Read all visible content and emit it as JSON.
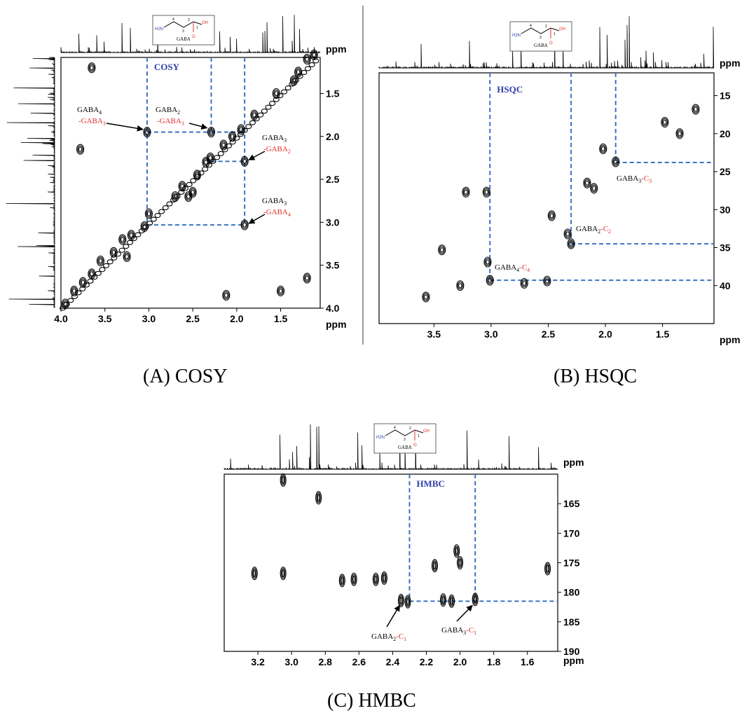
{
  "colors": {
    "guide": "#3b73c2",
    "label_red": "#e0312b",
    "label_blue": "#2f3fa8",
    "ink": "#000000"
  },
  "molecule": {
    "name": "GABA",
    "nh2": "H2N",
    "oh": "OH",
    "o": "O",
    "positions": [
      "4",
      "3",
      "2",
      "1"
    ]
  },
  "chart_data": [
    {
      "id": "A",
      "type": "scatter",
      "title": "COSY",
      "caption": "(A) COSY",
      "unit_top": "ppm",
      "unit_bottom": "ppm",
      "xlim": [
        4.0,
        1.05
      ],
      "ylim": [
        1.08,
        4.0
      ],
      "xticks": [
        "4.0",
        "3.5",
        "3.0",
        "2.5",
        "2.0",
        "1.5"
      ],
      "xtick_values": [
        4.0,
        3.5,
        3.0,
        2.5,
        2.0,
        1.5
      ],
      "yticks": [
        "1.5",
        "2.0",
        "2.5",
        "3.0",
        "3.5",
        "4.0"
      ],
      "ytick_values": [
        1.5,
        2.0,
        2.5,
        3.0,
        3.5,
        4.0
      ],
      "guides": {
        "vertical": [
          3.02,
          2.29,
          1.91
        ],
        "horizontal": [
          1.95,
          2.29,
          3.03
        ]
      },
      "annotations": [
        {
          "l1": "GABA",
          "s1": "4",
          "l2": "-GABA",
          "s2": "3",
          "x": 3.02,
          "y": 1.95
        },
        {
          "l1": "GABA",
          "s1": "2",
          "l2": "-GABA",
          "s2": "3",
          "x": 2.29,
          "y": 1.95
        },
        {
          "l1": "GABA",
          "s1": "3",
          "l2": "-GABA",
          "s2": "2",
          "x": 1.91,
          "y": 2.29
        },
        {
          "l1": "GABA",
          "s1": "3",
          "l2": "-GABA",
          "s2": "4",
          "x": 1.91,
          "y": 3.03
        }
      ],
      "peaks": [
        [
          3.65,
          1.2
        ],
        [
          3.78,
          2.15
        ],
        [
          3.02,
          1.95
        ],
        [
          2.29,
          1.95
        ],
        [
          1.91,
          2.29
        ],
        [
          1.91,
          3.03
        ],
        [
          2.62,
          2.58
        ],
        [
          2.5,
          2.65
        ],
        [
          2.7,
          2.7
        ],
        [
          2.55,
          2.7
        ],
        [
          2.35,
          2.3
        ],
        [
          2.15,
          2.1
        ],
        [
          2.05,
          2.0
        ],
        [
          1.95,
          1.92
        ],
        [
          1.8,
          1.75
        ],
        [
          1.55,
          1.5
        ],
        [
          1.35,
          1.35
        ],
        [
          1.3,
          1.25
        ],
        [
          1.2,
          1.1
        ],
        [
          1.12,
          1.05
        ],
        [
          3.0,
          2.9
        ],
        [
          3.05,
          3.05
        ],
        [
          3.2,
          3.15
        ],
        [
          3.3,
          3.2
        ],
        [
          3.4,
          3.35
        ],
        [
          3.55,
          3.45
        ],
        [
          3.65,
          3.6
        ],
        [
          3.75,
          3.7
        ],
        [
          3.85,
          3.8
        ],
        [
          3.95,
          3.95
        ],
        [
          2.45,
          2.45
        ],
        [
          2.3,
          2.25
        ],
        [
          1.5,
          3.8
        ],
        [
          1.2,
          3.65
        ],
        [
          2.12,
          3.85
        ],
        [
          3.25,
          3.4
        ]
      ]
    },
    {
      "id": "B",
      "type": "scatter",
      "title": "HSQC",
      "caption": "(B) HSQC",
      "unit_top": "ppm",
      "unit_bottom": "ppm",
      "xlim": [
        3.98,
        1.05
      ],
      "ylim": [
        12,
        45
      ],
      "xticks": [
        "3.5",
        "3.0",
        "2.5",
        "2.0",
        "1.5"
      ],
      "xtick_values": [
        3.5,
        3.0,
        2.5,
        2.0,
        1.5
      ],
      "yticks": [
        "15",
        "20",
        "25",
        "30",
        "35",
        "40"
      ],
      "ytick_values": [
        15,
        20,
        25,
        30,
        35,
        40
      ],
      "guides": {
        "vertical": [
          3.01,
          2.3,
          1.91
        ],
        "horizontal": [
          23.8,
          34.5,
          39.3
        ]
      },
      "annotations": [
        {
          "l1": "GABA",
          "s1": "3",
          "l2": "-C",
          "s2": "3",
          "x": 1.91,
          "y": 23.8
        },
        {
          "l1": "GABA",
          "s1": "2",
          "l2": "-C",
          "s2": "2",
          "x": 2.3,
          "y": 34.5
        },
        {
          "l1": "GABA",
          "s1": "4",
          "l2": "-C",
          "s2": "4",
          "x": 3.01,
          "y": 39.3
        }
      ],
      "peaks": [
        [
          1.21,
          16.8
        ],
        [
          1.48,
          18.5
        ],
        [
          1.35,
          20.0
        ],
        [
          2.02,
          22.0
        ],
        [
          1.91,
          23.7
        ],
        [
          2.16,
          26.5
        ],
        [
          2.1,
          27.2
        ],
        [
          3.22,
          27.7
        ],
        [
          3.04,
          27.7
        ],
        [
          2.47,
          30.8
        ],
        [
          2.33,
          33.2
        ],
        [
          2.3,
          34.5
        ],
        [
          3.43,
          35.3
        ],
        [
          3.03,
          36.9
        ],
        [
          3.01,
          39.3
        ],
        [
          3.27,
          40.0
        ],
        [
          2.71,
          39.7
        ],
        [
          2.51,
          39.4
        ],
        [
          3.57,
          41.5
        ]
      ]
    },
    {
      "id": "C",
      "type": "scatter",
      "title": "HMBC",
      "caption": "(C) HMBC",
      "unit_top": "ppm",
      "unit_bottom": "ppm",
      "xlim": [
        3.4,
        1.42
      ],
      "ylim": [
        160,
        190
      ],
      "xticks": [
        "3.2",
        "3.0",
        "2.8",
        "2.6",
        "2.4",
        "2.2",
        "2.0",
        "1.8",
        "1.6"
      ],
      "xtick_values": [
        3.2,
        3.0,
        2.8,
        2.6,
        2.4,
        2.2,
        2.0,
        1.8,
        1.6
      ],
      "yticks": [
        "165",
        "170",
        "175",
        "180",
        "185",
        "190"
      ],
      "ytick_values": [
        165,
        170,
        175,
        180,
        185,
        190
      ],
      "guides": {
        "vertical": [
          2.3,
          1.91
        ],
        "horizontal": [
          181.5
        ]
      },
      "annotations": [
        {
          "l1": "GABA",
          "s1": "2",
          "l2": "-C",
          "s2": "1",
          "x": 2.3,
          "y": 181.5
        },
        {
          "l1": "GABA",
          "s1": "3",
          "l2": "-C",
          "s2": "1",
          "x": 1.91,
          "y": 181.5
        }
      ],
      "peaks": [
        [
          3.05,
          161.0
        ],
        [
          2.84,
          164.0
        ],
        [
          3.22,
          176.8
        ],
        [
          3.05,
          176.8
        ],
        [
          2.7,
          178.0
        ],
        [
          2.63,
          177.8
        ],
        [
          2.5,
          177.8
        ],
        [
          2.45,
          177.6
        ],
        [
          2.15,
          175.5
        ],
        [
          2.02,
          173.0
        ],
        [
          2.0,
          175.0
        ],
        [
          2.35,
          181.4
        ],
        [
          2.31,
          181.6
        ],
        [
          2.1,
          181.3
        ],
        [
          2.05,
          181.5
        ],
        [
          1.91,
          181.2
        ],
        [
          1.48,
          176.0
        ]
      ]
    }
  ]
}
